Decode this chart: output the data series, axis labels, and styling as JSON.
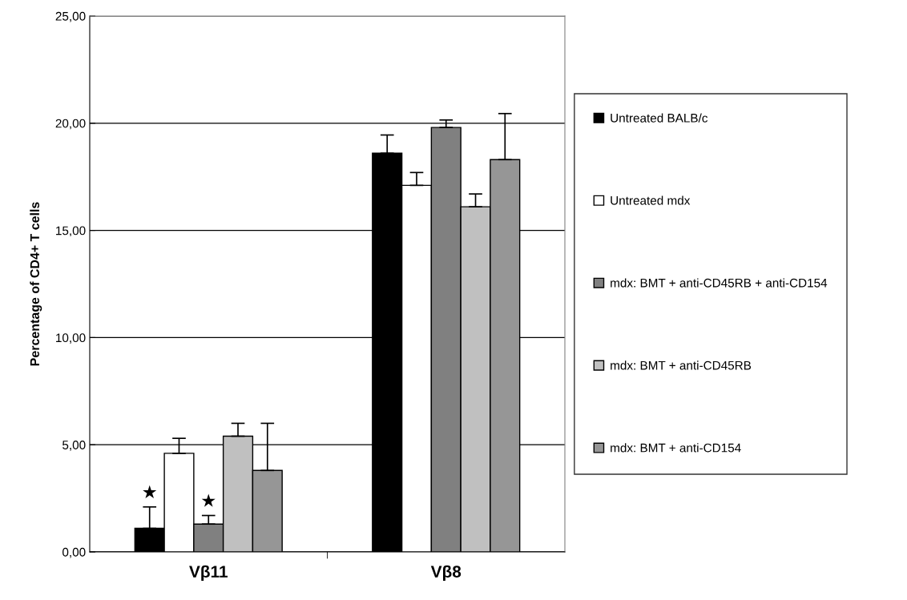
{
  "chart_data": {
    "type": "bar",
    "ylabel": "Percentage of CD4+ T cells",
    "categories": [
      "Vβ11",
      "Vβ8"
    ],
    "series": [
      {
        "name": "Untreated BALB/c",
        "color": "#000000",
        "values": [
          1.1,
          18.6
        ],
        "errors": [
          [
            1.1,
            2.1
          ],
          [
            18.6,
            19.45
          ]
        ],
        "value_labels": [
          "★",
          null
        ]
      },
      {
        "name": "Untreated mdx",
        "color": "#ffffff",
        "values": [
          4.6,
          17.1
        ],
        "errors": [
          [
            4.6,
            5.3
          ],
          [
            17.1,
            17.7
          ]
        ]
      },
      {
        "name": "mdx: BMT + anti-CD45RB + anti-CD154",
        "color": "#808080",
        "values": [
          1.3,
          19.8
        ],
        "errors": [
          [
            1.3,
            1.7
          ],
          [
            19.8,
            20.15
          ]
        ],
        "value_labels": [
          "★",
          null
        ]
      },
      {
        "name": "mdx: BMT + anti-CD45RB",
        "color": "#c0c0c0",
        "values": [
          5.4,
          16.1
        ],
        "errors": [
          [
            5.4,
            6.0
          ],
          [
            16.1,
            16.7
          ]
        ]
      },
      {
        "name": "mdx: BMT + anti-CD154",
        "color": "#969696",
        "values": [
          3.8,
          18.3
        ],
        "errors": [
          [
            3.8,
            6.0
          ],
          [
            18.3,
            20.45
          ]
        ]
      }
    ],
    "ylim": [
      0,
      25
    ],
    "yticks": [
      {
        "value": 0,
        "label": "0,00"
      },
      {
        "value": 5,
        "label": "5,00"
      },
      {
        "value": 10,
        "label": "10,00"
      },
      {
        "value": 15,
        "label": "15,00"
      },
      {
        "value": 20,
        "label": "20,00"
      },
      {
        "value": 25,
        "label": "25,00"
      }
    ],
    "grid": "y",
    "legend": "right"
  }
}
